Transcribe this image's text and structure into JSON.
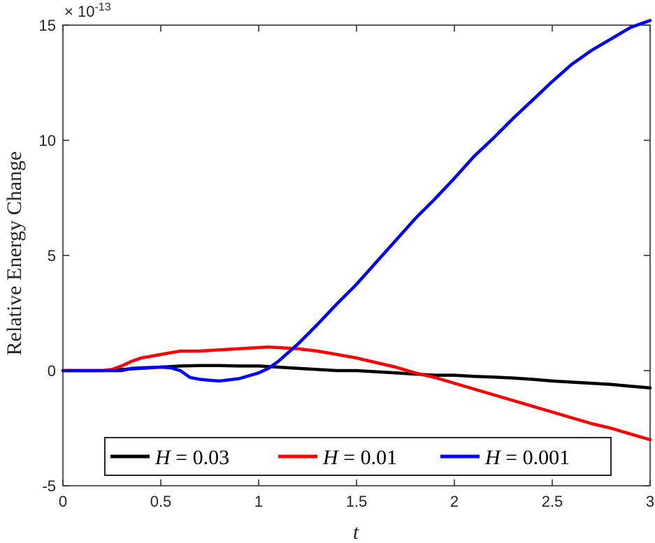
{
  "chart_data": {
    "type": "line",
    "xlabel": "t",
    "ylabel": "Relative Energy Change",
    "y_exponent_label": "× 10^-13",
    "y_exponent_base": "10",
    "y_exponent_power": "-13",
    "xlim": [
      0,
      3
    ],
    "ylim": [
      -5,
      15
    ],
    "x_ticks": [
      0,
      0.5,
      1,
      1.5,
      2,
      2.5,
      3
    ],
    "x_tick_labels": [
      "0",
      "0.5",
      "1",
      "1.5",
      "2",
      "2.5",
      "3"
    ],
    "y_ticks": [
      -5,
      0,
      5,
      10,
      15
    ],
    "y_tick_labels": [
      "-5",
      "0",
      "5",
      "10",
      "15"
    ],
    "grid": false,
    "legend_position": "bottom",
    "series": [
      {
        "name": "H = 0.03",
        "legend_var": "H",
        "legend_eq": " = ",
        "legend_val": "0.03",
        "color": "#000000",
        "x": [
          0,
          0.1,
          0.2,
          0.3,
          0.4,
          0.5,
          0.6,
          0.7,
          0.8,
          0.9,
          1.0,
          1.1,
          1.2,
          1.3,
          1.4,
          1.5,
          1.6,
          1.7,
          1.8,
          1.9,
          2.0,
          2.1,
          2.2,
          2.3,
          2.4,
          2.5,
          2.6,
          2.7,
          2.8,
          2.9,
          3.0
        ],
        "y": [
          0,
          0,
          0,
          0.05,
          0.1,
          0.15,
          0.2,
          0.22,
          0.22,
          0.2,
          0.2,
          0.15,
          0.1,
          0.05,
          0.0,
          0.0,
          -0.05,
          -0.1,
          -0.15,
          -0.2,
          -0.2,
          -0.25,
          -0.28,
          -0.32,
          -0.38,
          -0.45,
          -0.5,
          -0.55,
          -0.6,
          -0.68,
          -0.75
        ]
      },
      {
        "name": "H = 0.01",
        "legend_var": "H",
        "legend_eq": " = ",
        "legend_val": "0.01",
        "color": "#ff0000",
        "x": [
          0,
          0.1,
          0.2,
          0.25,
          0.3,
          0.35,
          0.4,
          0.5,
          0.6,
          0.7,
          0.8,
          0.9,
          1.0,
          1.05,
          1.1,
          1.2,
          1.3,
          1.4,
          1.5,
          1.6,
          1.7,
          1.8,
          1.9,
          2.0,
          2.1,
          2.2,
          2.3,
          2.4,
          2.5,
          2.6,
          2.7,
          2.8,
          2.9,
          3.0
        ],
        "y": [
          0,
          0,
          0,
          0.05,
          0.2,
          0.4,
          0.55,
          0.7,
          0.85,
          0.85,
          0.9,
          0.95,
          1.0,
          1.02,
          1.0,
          0.95,
          0.85,
          0.7,
          0.55,
          0.35,
          0.15,
          -0.1,
          -0.3,
          -0.55,
          -0.8,
          -1.05,
          -1.3,
          -1.55,
          -1.8,
          -2.05,
          -2.3,
          -2.5,
          -2.75,
          -3.0
        ]
      },
      {
        "name": "H = 0.001",
        "legend_var": "H",
        "legend_eq": " = ",
        "legend_val": "0.001",
        "color": "#0000ff",
        "x": [
          0,
          0.1,
          0.2,
          0.3,
          0.35,
          0.4,
          0.5,
          0.55,
          0.6,
          0.65,
          0.7,
          0.75,
          0.8,
          0.9,
          1.0,
          1.05,
          1.1,
          1.2,
          1.3,
          1.4,
          1.5,
          1.6,
          1.7,
          1.8,
          1.9,
          2.0,
          2.1,
          2.2,
          2.3,
          2.4,
          2.5,
          2.6,
          2.7,
          2.8,
          2.9,
          3.0
        ],
        "y": [
          0,
          0,
          0,
          0,
          0.1,
          0.12,
          0.15,
          0.12,
          0.0,
          -0.3,
          -0.38,
          -0.42,
          -0.45,
          -0.35,
          -0.1,
          0.1,
          0.4,
          1.15,
          2.0,
          2.9,
          3.75,
          4.7,
          5.65,
          6.6,
          7.45,
          8.35,
          9.3,
          10.1,
          10.95,
          11.75,
          12.55,
          13.3,
          13.9,
          14.4,
          14.9,
          15.2
        ]
      }
    ]
  }
}
